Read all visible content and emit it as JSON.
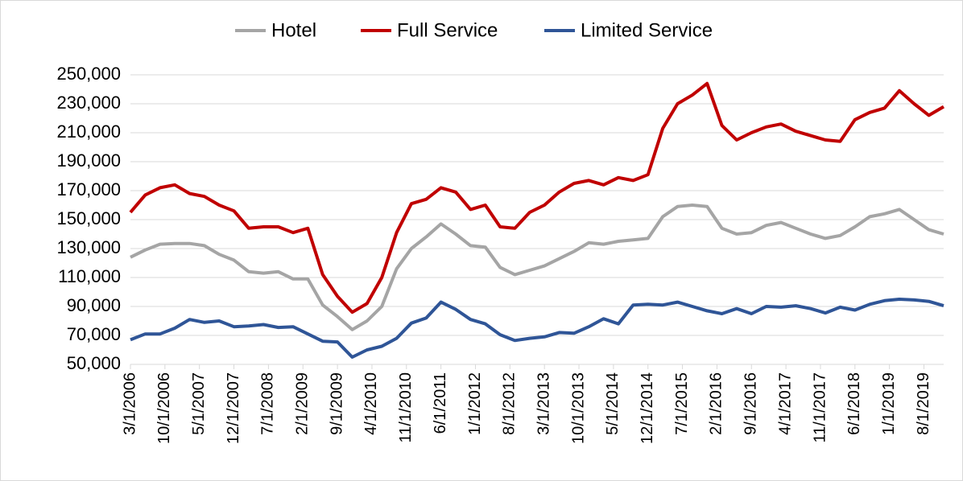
{
  "chart_data": {
    "type": "line",
    "x": [
      "3/1/2006",
      "6/1/2006",
      "9/1/2006",
      "12/1/2006",
      "3/1/2007",
      "6/1/2007",
      "9/1/2007",
      "12/1/2007",
      "3/1/2008",
      "6/1/2008",
      "9/1/2008",
      "12/1/2008",
      "3/1/2009",
      "6/1/2009",
      "9/1/2009",
      "12/1/2009",
      "3/1/2010",
      "6/1/2010",
      "9/1/2010",
      "12/1/2010",
      "3/1/2011",
      "6/1/2011",
      "9/1/2011",
      "12/1/2011",
      "3/1/2012",
      "6/1/2012",
      "9/1/2012",
      "12/1/2012",
      "3/1/2013",
      "6/1/2013",
      "9/1/2013",
      "12/1/2013",
      "3/1/2014",
      "6/1/2014",
      "9/1/2014",
      "12/1/2014",
      "3/1/2015",
      "6/1/2015",
      "9/1/2015",
      "12/1/2015",
      "3/1/2016",
      "6/1/2016",
      "9/1/2016",
      "12/1/2016",
      "3/1/2017",
      "6/1/2017",
      "9/1/2017",
      "12/1/2017",
      "3/1/2018",
      "6/1/2018",
      "9/1/2018",
      "12/1/2018",
      "3/1/2019",
      "6/1/2019",
      "9/1/2019",
      "12/1/2019"
    ],
    "series": [
      {
        "name": "Hotel",
        "color": "#a5a5a5",
        "values": [
          124000,
          129000,
          133000,
          133500,
          133500,
          132000,
          126000,
          122000,
          114000,
          113000,
          114000,
          109000,
          109000,
          91000,
          83000,
          74000,
          80000,
          90000,
          116000,
          130000,
          138000,
          147000,
          140000,
          132000,
          131000,
          117000,
          112000,
          115000,
          118000,
          123000,
          128000,
          134000,
          133000,
          135000,
          136000,
          137000,
          152000,
          159000,
          160000,
          159000,
          144000,
          140000,
          141000,
          146000,
          148000,
          144000,
          140000,
          137000,
          139000,
          145000,
          152000,
          154000,
          157000,
          150000,
          143000,
          140000
        ]
      },
      {
        "name": "Full Service",
        "color": "#c00000",
        "values": [
          155000,
          167000,
          172000,
          174000,
          168000,
          166000,
          160000,
          156000,
          144000,
          145000,
          145000,
          141000,
          144000,
          112000,
          97000,
          86000,
          92000,
          110000,
          141000,
          161000,
          164000,
          172000,
          169000,
          157000,
          160000,
          145000,
          144000,
          155000,
          160000,
          169000,
          175000,
          177000,
          174000,
          179000,
          177000,
          181000,
          213000,
          230000,
          236000,
          244000,
          215000,
          205000,
          210000,
          214000,
          216000,
          211000,
          208000,
          205000,
          204000,
          219000,
          224000,
          227000,
          239000,
          230000,
          222000,
          228000
        ]
      },
      {
        "name": "Limited Service",
        "color": "#2f5597",
        "values": [
          67000,
          71000,
          71000,
          75000,
          81000,
          79000,
          80000,
          76000,
          76500,
          77500,
          75500,
          76000,
          71000,
          66000,
          65500,
          55000,
          60000,
          62500,
          68000,
          78500,
          82000,
          93000,
          88000,
          81000,
          78000,
          70500,
          66500,
          68000,
          69000,
          72000,
          71500,
          76000,
          81500,
          78000,
          91000,
          91500,
          91000,
          93000,
          90000,
          87000,
          85000,
          88500,
          85000,
          90000,
          89500,
          90500,
          88500,
          85500,
          89500,
          87500,
          91500,
          94000,
          95000,
          94500,
          93500,
          90500
        ]
      }
    ],
    "xlim": [
      "3/1/2006",
      "12/1/2019"
    ],
    "xticks": [
      "3/1/2006",
      "10/1/2006",
      "5/1/2007",
      "12/1/2007",
      "7/1/2008",
      "2/1/2009",
      "9/1/2009",
      "4/1/2010",
      "11/1/2010",
      "6/1/2011",
      "1/1/2012",
      "8/1/2012",
      "3/1/2013",
      "10/1/2013",
      "5/1/2014",
      "12/1/2014",
      "7/1/2015",
      "2/1/2016",
      "9/1/2016",
      "4/1/2017",
      "11/1/2017",
      "6/1/2018",
      "1/1/2019",
      "8/1/2019"
    ],
    "ylim": [
      50000,
      250000
    ],
    "yticks": [
      {
        "value": 50000,
        "label": "50,000"
      },
      {
        "value": 70000,
        "label": "70,000"
      },
      {
        "value": 90000,
        "label": "90,000"
      },
      {
        "value": 110000,
        "label": "110,000"
      },
      {
        "value": 130000,
        "label": "130,000"
      },
      {
        "value": 150000,
        "label": "150,000"
      },
      {
        "value": 170000,
        "label": "170,000"
      },
      {
        "value": 190000,
        "label": "190,000"
      },
      {
        "value": 210000,
        "label": "210,000"
      },
      {
        "value": 230000,
        "label": "230,000"
      },
      {
        "value": 250000,
        "label": "250,000"
      }
    ],
    "grid": true,
    "legend": "top"
  }
}
